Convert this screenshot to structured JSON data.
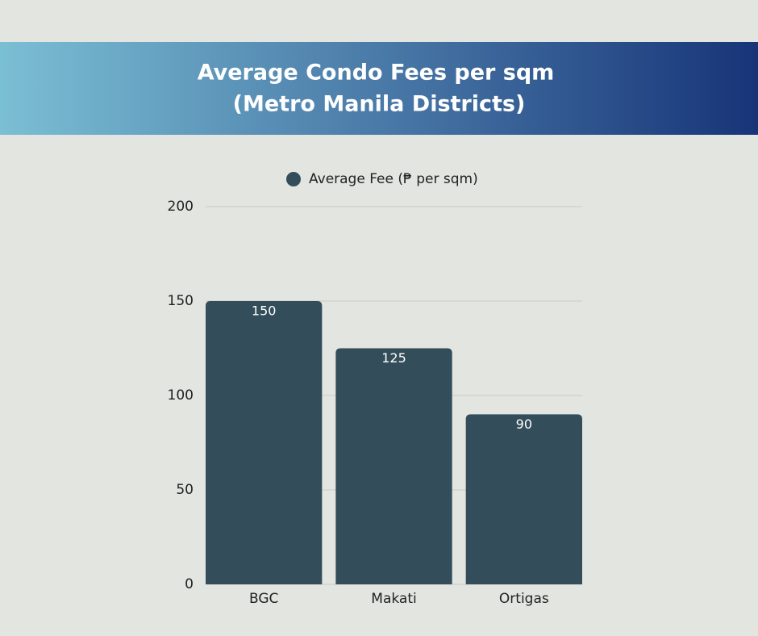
{
  "chart_data": {
    "type": "bar",
    "title": [
      "Average Condo Fees per sqm",
      "(Metro Manila Districts)"
    ],
    "categories": [
      "BGC",
      "Makati",
      "Ortigas"
    ],
    "series": [
      {
        "name": "Average Fee (₱ per sqm)",
        "color": "#334d5a",
        "values": [
          150,
          125,
          90
        ]
      }
    ],
    "ylim": [
      0,
      200
    ],
    "yticks": [
      0,
      50,
      100,
      150,
      200
    ],
    "grid": true,
    "legend": "top"
  }
}
